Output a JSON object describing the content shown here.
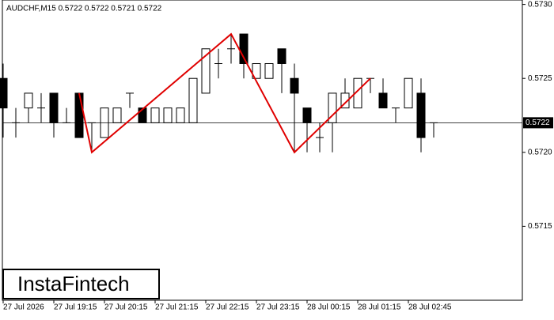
{
  "chart_data": {
    "type": "candlestick",
    "title": "AUDCHF,M15  0.5722 0.5722 0.5721 0.5722",
    "categories": [
      "27 Jul 2026",
      null,
      null,
      null,
      "27 Jul 19:15",
      null,
      null,
      null,
      "27 Jul 20:15",
      null,
      null,
      null,
      "27 Jul 21:15",
      null,
      null,
      null,
      "27 Jul 22:15",
      null,
      null,
      null,
      "27 Jul 23:15",
      null,
      null,
      null,
      "28 Jul 00:15",
      null,
      null,
      null,
      "28 Jul 01:15",
      null,
      null,
      null,
      "28 Jul 02:45",
      null,
      null
    ],
    "open": [
      0.5725,
      0.5722,
      0.5723,
      0.5723,
      0.5724,
      0.5722,
      0.5724,
      0.5722,
      0.5721,
      0.5722,
      0.5724,
      0.5723,
      0.5722,
      0.5722,
      0.5722,
      0.5722,
      0.5724,
      0.5726,
      0.5727,
      0.5728,
      0.5725,
      0.5725,
      0.5727,
      0.5725,
      0.5723,
      0.5721,
      0.5722,
      0.5723,
      0.5723,
      0.5725,
      0.5724,
      0.5723,
      0.5723,
      0.5724,
      0.5722
    ],
    "high": [
      0.5726,
      0.5723,
      0.5724,
      0.5724,
      0.5724,
      0.5723,
      0.5724,
      0.5722,
      0.5723,
      0.5723,
      0.5724,
      0.5723,
      0.5723,
      0.5723,
      0.5723,
      0.5725,
      0.5727,
      0.5727,
      0.5728,
      0.5728,
      0.5726,
      0.5726,
      0.5727,
      0.5726,
      0.5723,
      0.5722,
      0.5724,
      0.5725,
      0.5725,
      0.5725,
      0.5725,
      0.5723,
      0.5725,
      0.5725,
      0.5722
    ],
    "low": [
      0.5721,
      0.5721,
      0.5722,
      0.5722,
      0.5721,
      0.5722,
      0.5721,
      0.572,
      0.5721,
      0.5722,
      0.5723,
      0.5722,
      0.5722,
      0.5722,
      0.5722,
      0.5722,
      0.5724,
      0.5725,
      0.5726,
      0.5725,
      0.5725,
      0.5725,
      0.5724,
      0.572,
      0.572,
      0.572,
      0.572,
      0.5723,
      0.5723,
      0.5724,
      0.5723,
      0.5722,
      0.5723,
      0.572,
      0.5721
    ],
    "close": [
      0.5723,
      0.5722,
      0.5724,
      0.5723,
      0.5722,
      0.5722,
      0.5721,
      0.5722,
      0.5723,
      0.5723,
      0.5724,
      0.5722,
      0.5723,
      0.5723,
      0.5723,
      0.5725,
      0.5727,
      0.5726,
      0.5727,
      0.5726,
      0.5726,
      0.5726,
      0.5726,
      0.5724,
      0.5722,
      0.5721,
      0.5724,
      0.5724,
      0.5725,
      0.5725,
      0.5723,
      0.5723,
      0.5725,
      0.5721,
      0.5722
    ],
    "ylim": [
      0.571,
      0.57303
    ],
    "yticks": [
      {
        "value": 0.573,
        "label": "0.5730"
      },
      0.5725,
      {
        "value": 0.572,
        "label": "0.5720"
      },
      0.5715
    ],
    "last_price": 0.5722,
    "pattern": {
      "color": "#e00000",
      "x": [
        6,
        7,
        18,
        23,
        29
      ],
      "values": [
        0.5724,
        0.572,
        0.5728,
        0.572,
        0.5725
      ]
    },
    "logo": "InstaFintech"
  }
}
